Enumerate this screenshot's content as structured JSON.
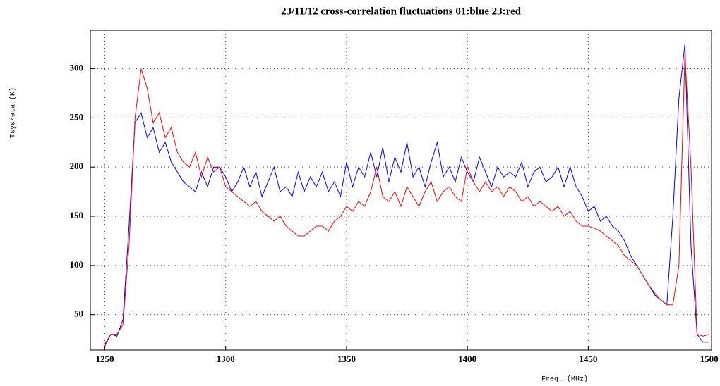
{
  "chart_data": {
    "type": "line",
    "title": "23/11/12 cross-correlation fluctuations 01:blue 23:red",
    "x_label": "Freq. (MHz)",
    "y_label": "Tsys/eta (K)",
    "x": [
      1250,
      1252.5,
      1255,
      1257.5,
      1260,
      1262.5,
      1265,
      1267.5,
      1270,
      1272.5,
      1275,
      1277.5,
      1280,
      1282.5,
      1285,
      1287.5,
      1290,
      1292.5,
      1295,
      1297.5,
      1300,
      1302.5,
      1305,
      1307.5,
      1310,
      1312.5,
      1315,
      1317.5,
      1320,
      1322.5,
      1325,
      1327.5,
      1330,
      1332.5,
      1335,
      1337.5,
      1340,
      1342.5,
      1345,
      1347.5,
      1350,
      1352.5,
      1355,
      1357.5,
      1360,
      1362.5,
      1365,
      1367.5,
      1370,
      1372.5,
      1375,
      1377.5,
      1380,
      1382.5,
      1385,
      1387.5,
      1390,
      1392.5,
      1395,
      1397.5,
      1400,
      1402.5,
      1405,
      1407.5,
      1410,
      1412.5,
      1415,
      1417.5,
      1420,
      1422.5,
      1425,
      1427.5,
      1430,
      1432.5,
      1435,
      1437.5,
      1440,
      1442.5,
      1445,
      1447.5,
      1450,
      1452.5,
      1455,
      1457.5,
      1460,
      1462.5,
      1465,
      1467.5,
      1470,
      1472.5,
      1475,
      1477.5,
      1480,
      1482.5,
      1485,
      1487.5,
      1490,
      1492.5,
      1495,
      1497.5,
      1500
    ],
    "series": [
      {
        "name": "01",
        "color": "#0000ff",
        "values": [
          20,
          30,
          28,
          45,
          140,
          245,
          255,
          230,
          240,
          215,
          225,
          205,
          195,
          185,
          180,
          175,
          195,
          180,
          200,
          200,
          190,
          175,
          185,
          200,
          180,
          195,
          170,
          185,
          200,
          175,
          180,
          170,
          195,
          175,
          190,
          180,
          195,
          175,
          185,
          170,
          205,
          180,
          200,
          190,
          215,
          190,
          220,
          185,
          210,
          195,
          225,
          190,
          200,
          180,
          205,
          225,
          190,
          200,
          185,
          210,
          195,
          185,
          210,
          195,
          180,
          200,
          190,
          195,
          190,
          205,
          180,
          195,
          200,
          185,
          190,
          200,
          180,
          200,
          180,
          170,
          155,
          160,
          145,
          150,
          140,
          135,
          125,
          110,
          100,
          90,
          80,
          70,
          65,
          60,
          150,
          270,
          325,
          120,
          30,
          22,
          22
        ]
      },
      {
        "name": "23",
        "color": "#ff0000",
        "values": [
          18,
          30,
          30,
          40,
          120,
          250,
          300,
          280,
          245,
          255,
          230,
          240,
          215,
          205,
          200,
          215,
          190,
          210,
          195,
          200,
          180,
          175,
          170,
          165,
          160,
          165,
          155,
          150,
          145,
          150,
          140,
          135,
          130,
          130,
          135,
          140,
          140,
          135,
          145,
          150,
          160,
          155,
          165,
          160,
          175,
          200,
          170,
          165,
          175,
          160,
          180,
          170,
          160,
          175,
          185,
          165,
          175,
          180,
          170,
          165,
          200,
          185,
          175,
          185,
          175,
          180,
          170,
          180,
          175,
          165,
          170,
          160,
          165,
          160,
          155,
          160,
          150,
          155,
          145,
          140,
          140,
          138,
          135,
          130,
          125,
          120,
          110,
          105,
          100,
          90,
          80,
          72,
          65,
          60,
          60,
          100,
          315,
          200,
          30,
          28,
          30
        ]
      }
    ],
    "xlim": [
      1244,
      1501
    ],
    "ylim": [
      14,
      339
    ],
    "xticks": [
      1250,
      1300,
      1350,
      1400,
      1450,
      1500
    ],
    "yticks": [
      50,
      100,
      150,
      200,
      250,
      300
    ],
    "grid": true
  }
}
